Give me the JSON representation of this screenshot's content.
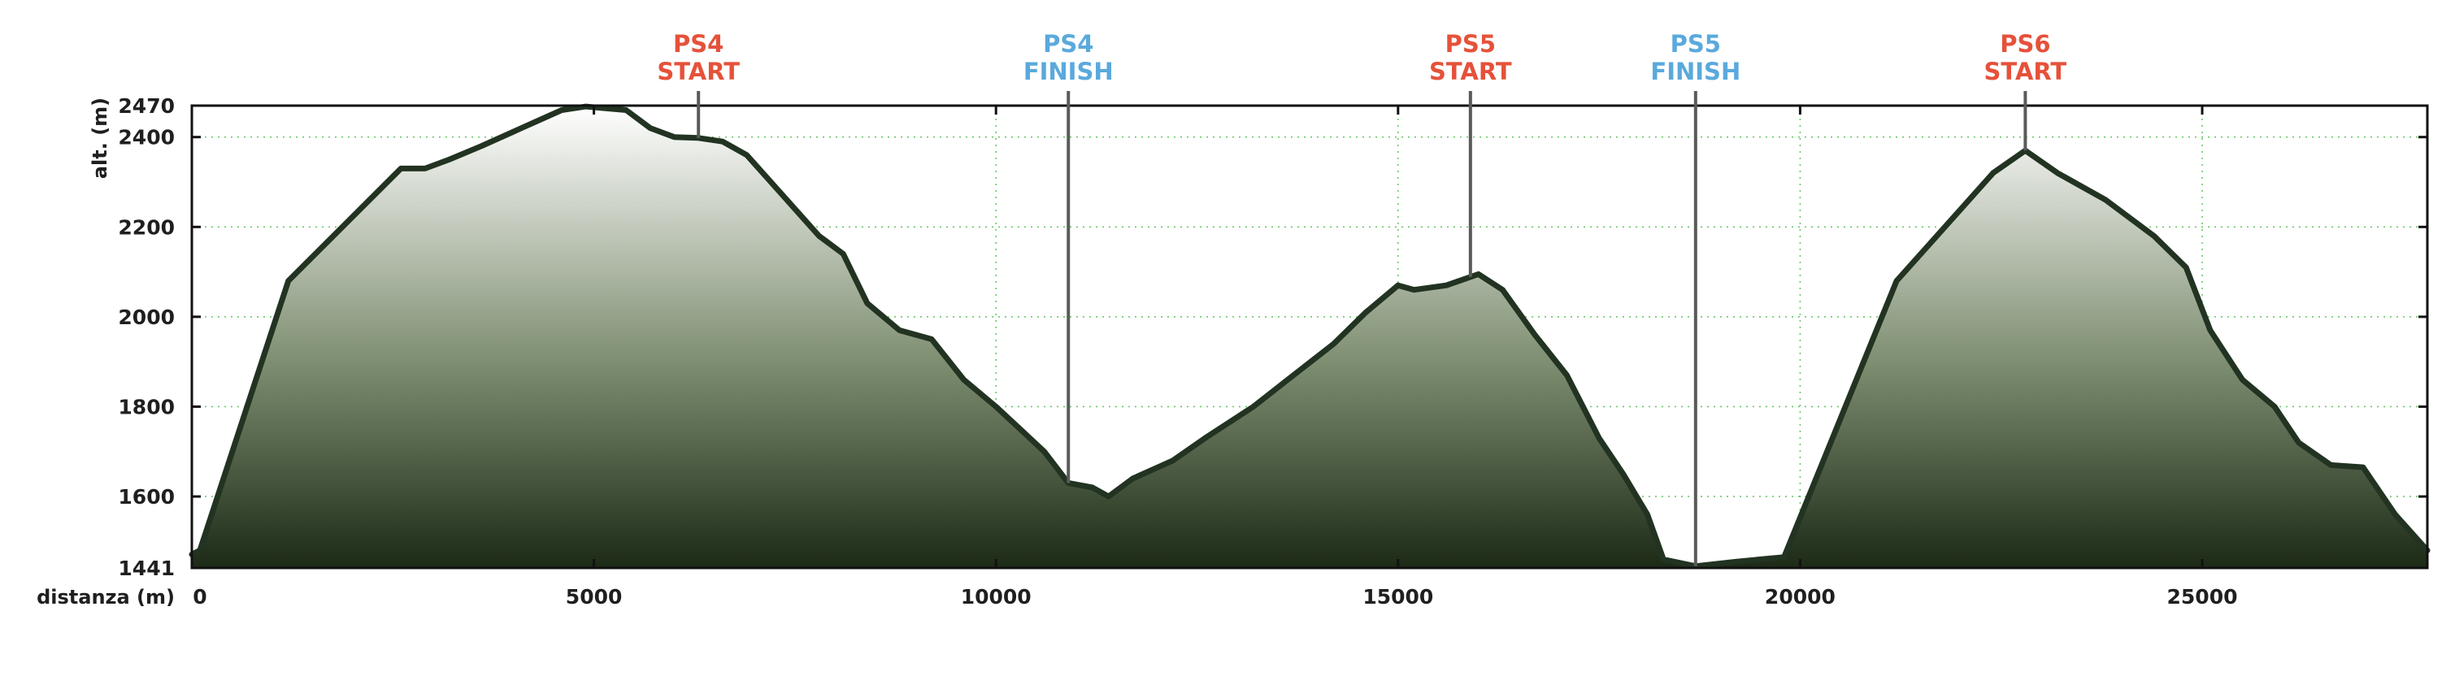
{
  "chart_data": {
    "type": "area",
    "title": "",
    "xlabel": "distanza (m)",
    "ylabel": "alt. (m)",
    "xlim": [
      0,
      27800
    ],
    "ylim": [
      1441,
      2470
    ],
    "grid": true,
    "x_ticks": [
      0,
      5000,
      10000,
      15000,
      20000,
      25000
    ],
    "x_tick_labels": [
      "0",
      "5000",
      "10000",
      "15000",
      "20000",
      "25000"
    ],
    "y_ticks": [
      1441,
      1600,
      1800,
      2000,
      2200,
      2400,
      2470
    ],
    "y_tick_labels": [
      "1441",
      "1600",
      "1800",
      "2000",
      "2200",
      "2400",
      "2470"
    ],
    "colors": {
      "line": "#223322",
      "fill_top": "#ffffff",
      "fill_bottom": "#1c2a16",
      "start": "#e6513a",
      "finish": "#5aa9dc",
      "marker_line": "#5a5a5a"
    },
    "markers": [
      {
        "id": "ps4-start",
        "line1": "PS4",
        "line2": "START",
        "kind": "start",
        "x": 6300
      },
      {
        "id": "ps4-finish",
        "line1": "PS4",
        "line2": "FINISH",
        "kind": "finish",
        "x": 10900
      },
      {
        "id": "ps5-start",
        "line1": "PS5",
        "line2": "START",
        "kind": "start",
        "x": 15900
      },
      {
        "id": "ps5-finish",
        "line1": "PS5",
        "line2": "FINISH",
        "kind": "finish",
        "x": 18700
      },
      {
        "id": "ps6-start",
        "line1": "PS6",
        "line2": "START",
        "kind": "start",
        "x": 22800
      }
    ],
    "series": [
      {
        "x": [
          0,
          100,
          1200,
          2600,
          2900,
          3200,
          3600,
          4100,
          4600,
          4900,
          5400,
          5700,
          6000,
          6300,
          6600,
          6900,
          7400,
          7800,
          8100,
          8400,
          8800,
          9200,
          9600,
          10000,
          10300,
          10600,
          10900,
          11200,
          11400,
          11700,
          12200,
          12600,
          13200,
          13700,
          14200,
          14600,
          15000,
          15200,
          15600,
          16000,
          16300,
          16700,
          17100,
          17500,
          17800,
          18100,
          18300,
          18700,
          19200,
          19800,
          21200,
          21800,
          22400,
          22800,
          23200,
          23800,
          24400,
          24800,
          25100,
          25500,
          25900,
          26200,
          26600,
          27000,
          27400,
          27800
        ],
        "y": [
          1471,
          1480,
          2080,
          2330,
          2330,
          2350,
          2380,
          2420,
          2460,
          2468,
          2460,
          2420,
          2400,
          2398,
          2390,
          2360,
          2260,
          2180,
          2140,
          2030,
          1970,
          1950,
          1860,
          1800,
          1750,
          1700,
          1630,
          1620,
          1600,
          1640,
          1680,
          1730,
          1800,
          1870,
          1940,
          2010,
          2070,
          2060,
          2070,
          2095,
          2060,
          1960,
          1870,
          1730,
          1650,
          1560,
          1460,
          1445,
          1455,
          1465,
          2080,
          2200,
          2320,
          2370,
          2320,
          2260,
          2180,
          2110,
          1970,
          1860,
          1800,
          1720,
          1670,
          1665,
          1560,
          1480
        ]
      }
    ]
  }
}
